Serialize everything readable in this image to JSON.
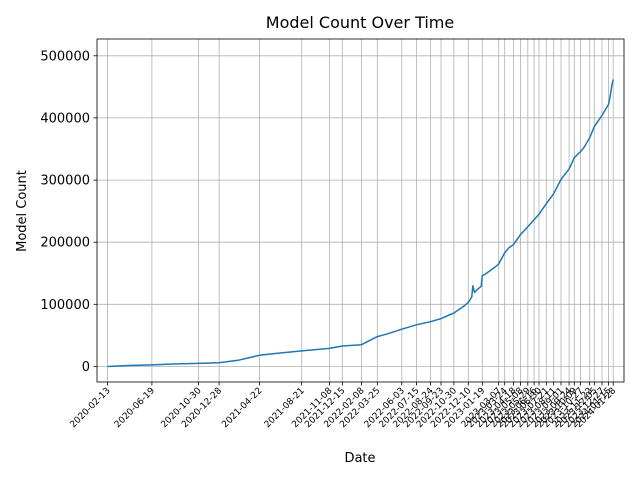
{
  "chart_data": {
    "type": "line",
    "title": "Model Count Over Time",
    "xlabel": "Date",
    "ylabel": "Model Count",
    "grid": true,
    "line_color": "#1f77b4",
    "xlim": [
      "2020-01-14",
      "2024-02-28"
    ],
    "ylim": [
      -25000,
      527000
    ],
    "yticks": [
      0,
      100000,
      200000,
      300000,
      400000,
      500000
    ],
    "xticks": [
      "2020-02-13",
      "2020-06-19",
      "2020-10-30",
      "2020-12-28",
      "2021-04-22",
      "2021-08-21",
      "2021-11-08",
      "2021-12-15",
      "2022-02-08",
      "2022-03-25",
      "2022-06-03",
      "2022-07-15",
      "2022-08-24",
      "2022-09-23",
      "2022-10-30",
      "2022-12-10",
      "2023-01-19",
      "2023-03-07",
      "2023-03-24",
      "2023-04-18",
      "2023-05-08",
      "2023-05-29",
      "2023-06-16",
      "2023-06-30",
      "2023-07-21",
      "2023-08-11",
      "2023-09-01",
      "2023-09-24",
      "2023-10-09",
      "2023-10-27",
      "2023-11-22",
      "2023-12-05",
      "2023-12-27",
      "2024-01-15",
      "2024-01-28"
    ],
    "series": [
      {
        "x": [
          "2020-02-13",
          "2020-04-15",
          "2020-06-19",
          "2020-08-20",
          "2020-10-30",
          "2020-12-28",
          "2021-02-20",
          "2021-04-22",
          "2021-06-10",
          "2021-08-21",
          "2021-11-08",
          "2021-12-15",
          "2022-02-08",
          "2022-03-25",
          "2022-04-20",
          "2022-06-03",
          "2022-07-15",
          "2022-08-24",
          "2022-09-23",
          "2022-10-30",
          "2022-11-25",
          "2022-12-10",
          "2022-12-20",
          "2022-12-23",
          "2022-12-28",
          "2023-01-05",
          "2023-01-16",
          "2023-01-19",
          "2023-01-26",
          "2023-02-05",
          "2023-02-15",
          "2023-02-25",
          "2023-03-07",
          "2023-03-24",
          "2023-04-05",
          "2023-04-18",
          "2023-05-08",
          "2023-05-29",
          "2023-06-16",
          "2023-06-30",
          "2023-07-21",
          "2023-08-11",
          "2023-09-01",
          "2023-09-24",
          "2023-10-09",
          "2023-10-27",
          "2023-11-05",
          "2023-11-22",
          "2023-12-05",
          "2023-12-27",
          "2024-01-15",
          "2024-01-21",
          "2024-01-24",
          "2024-01-28"
        ],
        "y": [
          0,
          1500,
          2500,
          4000,
          5000,
          6000,
          10000,
          18000,
          21000,
          25000,
          29000,
          33000,
          35000,
          48000,
          52000,
          60000,
          67000,
          72000,
          77000,
          86000,
          96000,
          103000,
          112000,
          130000,
          119000,
          124000,
          129000,
          146000,
          148000,
          152000,
          156000,
          160000,
          165000,
          183000,
          191000,
          196000,
          212000,
          225000,
          236000,
          245000,
          262000,
          278000,
          301000,
          318000,
          336000,
          346000,
          352000,
          368000,
          386000,
          404000,
          422000,
          440000,
          452000,
          462000
        ]
      }
    ]
  }
}
